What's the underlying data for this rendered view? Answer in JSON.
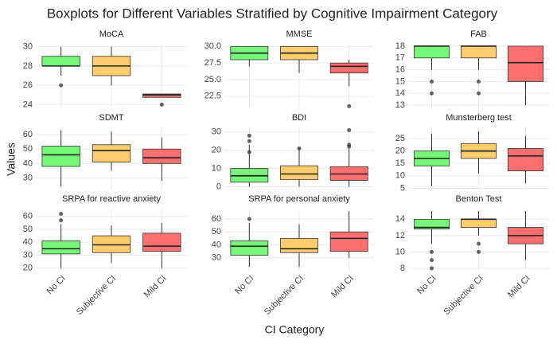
{
  "title": "Boxplots for Different Variables Stratified by Cognitive Impairment Category",
  "x_label": "CI Category",
  "y_label": "Values",
  "categories": [
    "No CI",
    "Subjective CI",
    "Mild CI"
  ],
  "colors": [
    "#77f777",
    "#ffcc6e",
    "#ff6f6f"
  ],
  "grid": true,
  "chart_data": [
    {
      "type": "box",
      "title": "MoCA",
      "ylim": [
        23.7,
        30.3
      ],
      "yticks": [
        24,
        26,
        28,
        30
      ],
      "boxes": [
        {
          "min": 27,
          "q1": 28,
          "median": 28,
          "q3": 29,
          "max": 30,
          "outliers": [
            26
          ]
        },
        {
          "min": 26,
          "q1": 27,
          "median": 28,
          "q3": 29,
          "max": 30,
          "outliers": []
        },
        {
          "min": 24.75,
          "q1": 24.75,
          "median": 25,
          "q3": 25.1,
          "max": 25.1,
          "outliers": [
            24
          ]
        }
      ]
    },
    {
      "type": "box",
      "title": "MMSE",
      "ylim": [
        20.8,
        30.4
      ],
      "yticks": [
        22.5,
        {
          "value": 25,
          "label": "25.0"
        },
        27.5,
        {
          "value": 30,
          "label": "30.0"
        }
      ],
      "boxes": [
        {
          "min": 27,
          "q1": 28,
          "median": 29,
          "q3": 30,
          "max": 30,
          "outliers": []
        },
        {
          "min": 26,
          "q1": 28,
          "median": 29,
          "q3": 30,
          "max": 30,
          "outliers": []
        },
        {
          "min": 24,
          "q1": 26,
          "median": 27,
          "q3": 27.5,
          "max": 28,
          "outliers": [
            21
          ]
        }
      ]
    },
    {
      "type": "box",
      "title": "FAB",
      "ylim": [
        12.8,
        18.2
      ],
      "yticks": [
        13,
        14,
        15,
        16,
        17,
        18
      ],
      "boxes": [
        {
          "min": 16,
          "q1": 17,
          "median": 18,
          "q3": 18,
          "max": 18,
          "outliers": [
            15,
            14
          ]
        },
        {
          "min": 16,
          "q1": 17,
          "median": 18,
          "q3": 18,
          "max": 18,
          "outliers": [
            15,
            14
          ]
        },
        {
          "min": 13,
          "q1": 15,
          "median": 16.6,
          "q3": 18,
          "max": 18,
          "outliers": []
        }
      ]
    },
    {
      "type": "box",
      "title": "SDMT",
      "ylim": [
        22,
        65
      ],
      "yticks": [
        30,
        40,
        50,
        60
      ],
      "boxes": [
        {
          "min": 24,
          "q1": 38,
          "median": 46,
          "q3": 52,
          "max": 63,
          "outliers": []
        },
        {
          "min": 35,
          "q1": 41,
          "median": 49,
          "q3": 53,
          "max": 62,
          "outliers": []
        },
        {
          "min": 28,
          "q1": 40,
          "median": 44,
          "q3": 50,
          "max": 58,
          "outliers": []
        }
      ]
    },
    {
      "type": "box",
      "title": "BDI",
      "ylim": [
        -1.5,
        32.5
      ],
      "yticks": [
        0,
        10,
        20,
        30
      ],
      "boxes": [
        {
          "min": 0,
          "q1": 2.5,
          "median": 6,
          "q3": 10,
          "max": 23,
          "outliers": [
            19,
            25,
            28
          ]
        },
        {
          "min": 0,
          "q1": 4,
          "median": 7,
          "q3": 11.5,
          "max": 21,
          "outliers": [
            21
          ]
        },
        {
          "min": 0,
          "q1": 3.5,
          "median": 7,
          "q3": 11,
          "max": 21,
          "outliers": [
            22,
            23,
            31
          ]
        }
      ]
    },
    {
      "type": "box",
      "title": "Munsterberg test",
      "ylim": [
        4.5,
        29.5
      ],
      "yticks": [
        5,
        10,
        15,
        20,
        25
      ],
      "boxes": [
        {
          "min": 6,
          "q1": 14,
          "median": 17,
          "q3": 20,
          "max": 27,
          "outliers": []
        },
        {
          "min": 11,
          "q1": 17,
          "median": 20,
          "q3": 23,
          "max": 28,
          "outliers": []
        },
        {
          "min": 7,
          "q1": 12,
          "median": 18,
          "q3": 21,
          "max": 26,
          "outliers": []
        }
      ]
    },
    {
      "type": "box",
      "title": "SRPA for reactive anxiety",
      "ylim": [
        18,
        66
      ],
      "yticks": [
        20,
        30,
        40,
        50,
        60
      ],
      "boxes": [
        {
          "min": 20,
          "q1": 31,
          "median": 35,
          "q3": 41,
          "max": 54,
          "outliers": [
            57,
            62
          ]
        },
        {
          "min": 24,
          "q1": 32,
          "median": 38,
          "q3": 45,
          "max": 53,
          "outliers": []
        },
        {
          "min": 20,
          "q1": 33,
          "median": 37,
          "q3": 47,
          "max": 55,
          "outliers": []
        }
      ]
    },
    {
      "type": "box",
      "title": "SRPA for personal anxiety",
      "ylim": [
        20,
        68
      ],
      "yticks": [
        30,
        40,
        50,
        60
      ],
      "boxes": [
        {
          "min": 23,
          "q1": 32,
          "median": 39,
          "q3": 43,
          "max": 57,
          "outliers": [
            60
          ]
        },
        {
          "min": 23,
          "q1": 34,
          "median": 37,
          "q3": 45,
          "max": 56,
          "outliers": []
        },
        {
          "min": 30,
          "q1": 35,
          "median": 45,
          "q3": 50,
          "max": 66,
          "outliers": []
        }
      ]
    },
    {
      "type": "box",
      "title": "Benton Test",
      "ylim": [
        7.7,
        15.3
      ],
      "yticks": [
        8,
        10,
        12,
        14
      ],
      "boxes": [
        {
          "min": 11,
          "q1": 12.8,
          "median": 13,
          "q3": 14,
          "max": 15,
          "outliers": [
            10,
            9,
            8
          ]
        },
        {
          "min": 12,
          "q1": 13,
          "median": 14,
          "q3": 14,
          "max": 15,
          "outliers": [
            11,
            10
          ]
        },
        {
          "min": 9,
          "q1": 11,
          "median": 12,
          "q3": 13,
          "max": 15,
          "outliers": []
        }
      ]
    }
  ]
}
